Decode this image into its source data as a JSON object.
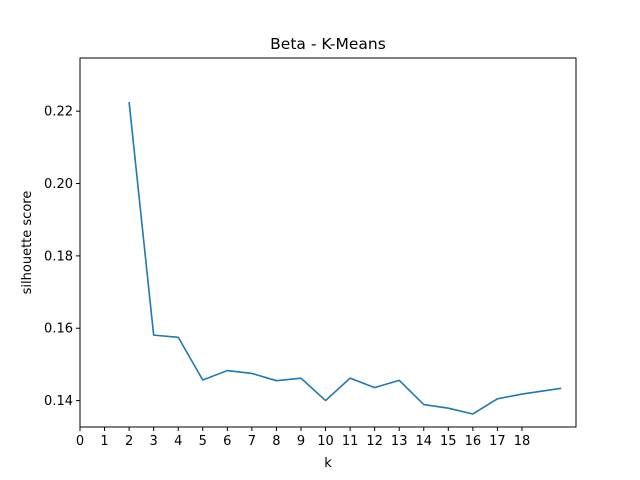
{
  "chart_data": {
    "type": "line",
    "title": "Beta - K-Means",
    "xlabel": "k",
    "ylabel": "silhouette score",
    "xlim": [
      0,
      20.2
    ],
    "ylim": [
      0.1327,
      0.2347
    ],
    "xticks": [
      0,
      1,
      2,
      3,
      4,
      5,
      6,
      7,
      8,
      9,
      10,
      11,
      12,
      13,
      14,
      15,
      16,
      17,
      18
    ],
    "yticks": [
      0.14,
      0.16,
      0.18,
      0.2,
      0.22
    ],
    "ytick_labels": [
      "0.14",
      "0.16",
      "0.18",
      "0.20",
      "0.22"
    ],
    "grid": false,
    "series": [
      {
        "color": "#1f77b4",
        "x": [
          2,
          3,
          4,
          5,
          6,
          7,
          8,
          9,
          10,
          11,
          12,
          13,
          14,
          15,
          16,
          17,
          18,
          19.6
        ],
        "y": [
          0.2225,
          0.1581,
          0.1575,
          0.1457,
          0.1483,
          0.1475,
          0.1455,
          0.1462,
          0.14,
          0.1462,
          0.1436,
          0.1456,
          0.1389,
          0.1379,
          0.1363,
          0.1405,
          0.1418,
          0.1434
        ]
      }
    ]
  }
}
